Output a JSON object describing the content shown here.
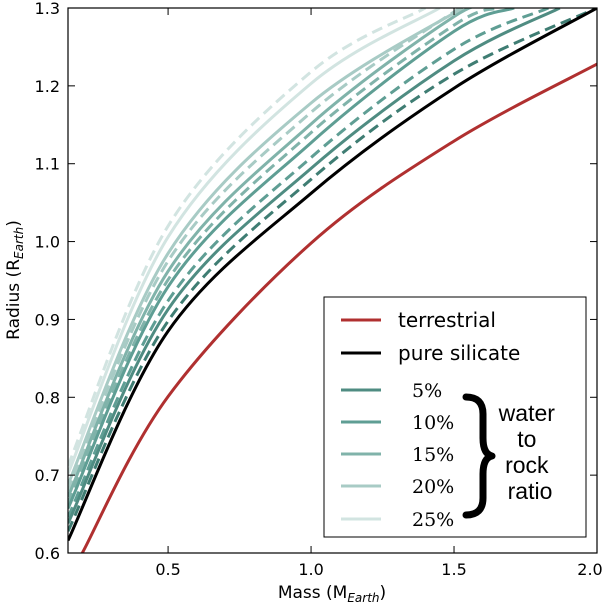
{
  "chart_data": {
    "type": "line",
    "title": "",
    "xlabel": "Mass (M",
    "xlabel_sub": "Earth",
    "xlabel_close": ")",
    "ylabel": "Radius (R",
    "ylabel_sub": "Earth",
    "ylabel_close": ")",
    "xlim": [
      0.15,
      2.0
    ],
    "ylim": [
      0.6,
      1.3
    ],
    "xticks": [
      "0.5",
      "1.0",
      "1.5",
      "2.0"
    ],
    "xtick_values": [
      0.5,
      1.0,
      1.5,
      2.0
    ],
    "yticks": [
      "0.6",
      "0.7",
      "0.8",
      "0.9",
      "1.0",
      "1.1",
      "1.2",
      "1.3"
    ],
    "ytick_values": [
      0.6,
      0.7,
      0.8,
      0.9,
      1.0,
      1.1,
      1.2,
      1.3
    ],
    "grid": false,
    "legend_position": "bottom-right",
    "brace_label": [
      "water",
      "to",
      "rock",
      "ratio"
    ],
    "series": [
      {
        "name": "terrestrial",
        "color": "#b03030",
        "dash": false,
        "x": [
          0.2,
          0.5,
          1.0,
          1.5,
          2.0
        ],
        "y": [
          0.6,
          0.801,
          0.998,
          1.129,
          1.228
        ]
      },
      {
        "name": "pure silicate",
        "color": "#000000",
        "dash": false,
        "x": [
          0.15,
          0.5,
          1.0,
          1.5,
          2.0
        ],
        "y": [
          0.616,
          0.885,
          1.062,
          1.197,
          1.3
        ]
      },
      {
        "name": "5%",
        "color": "#4f8c82",
        "dash": false,
        "x": [
          0.15,
          0.5,
          1.0,
          1.5,
          1.87
        ],
        "y": [
          0.638,
          0.913,
          1.094,
          1.232,
          1.3
        ]
      },
      {
        "name": "10%",
        "color": "#5f9e94",
        "dash": false,
        "x": [
          0.15,
          0.5,
          1.0,
          1.5,
          1.71
        ],
        "y": [
          0.657,
          0.942,
          1.127,
          1.27,
          1.3
        ]
      },
      {
        "name": "15%",
        "color": "#80b3aa",
        "dash": false,
        "x": [
          0.15,
          0.5,
          1.0,
          1.5,
          1.62
        ],
        "y": [
          0.672,
          0.962,
          1.151,
          1.289,
          1.3
        ]
      },
      {
        "name": "20%",
        "color": "#a8cbc5",
        "dash": false,
        "x": [
          0.15,
          0.5,
          1.0,
          1.53
        ],
        "y": [
          0.688,
          0.985,
          1.178,
          1.3
        ]
      },
      {
        "name": "25%",
        "color": "#d2e4e1",
        "dash": false,
        "x": [
          0.15,
          0.5,
          1.0,
          1.45
        ],
        "y": [
          0.702,
          1.006,
          1.203,
          1.3
        ]
      },
      {
        "name": "",
        "color": "#3f7d73",
        "dash": true,
        "x": [
          0.15,
          0.5,
          1.0,
          1.5,
          2.0
        ],
        "y": [
          0.628,
          0.898,
          1.08,
          1.215,
          1.3
        ]
      },
      {
        "name": "",
        "color": "#5f9e94",
        "dash": true,
        "x": [
          0.15,
          0.5,
          1.0,
          1.5,
          1.83
        ],
        "y": [
          0.646,
          0.924,
          1.108,
          1.247,
          1.3
        ]
      },
      {
        "name": "",
        "color": "#80b3aa",
        "dash": true,
        "x": [
          0.15,
          0.5,
          1.0,
          1.5,
          1.66
        ],
        "y": [
          0.664,
          0.951,
          1.14,
          1.278,
          1.3
        ]
      },
      {
        "name": "",
        "color": "#a8cbc5",
        "dash": true,
        "x": [
          0.15,
          0.5,
          1.0,
          1.5,
          1.55
        ],
        "y": [
          0.68,
          0.975,
          1.166,
          1.295,
          1.3
        ]
      },
      {
        "name": "",
        "color": "#d2e4e1",
        "dash": true,
        "x": [
          0.15,
          0.5,
          1.0,
          1.4
        ],
        "y": [
          0.712,
          1.02,
          1.218,
          1.3
        ]
      }
    ]
  }
}
